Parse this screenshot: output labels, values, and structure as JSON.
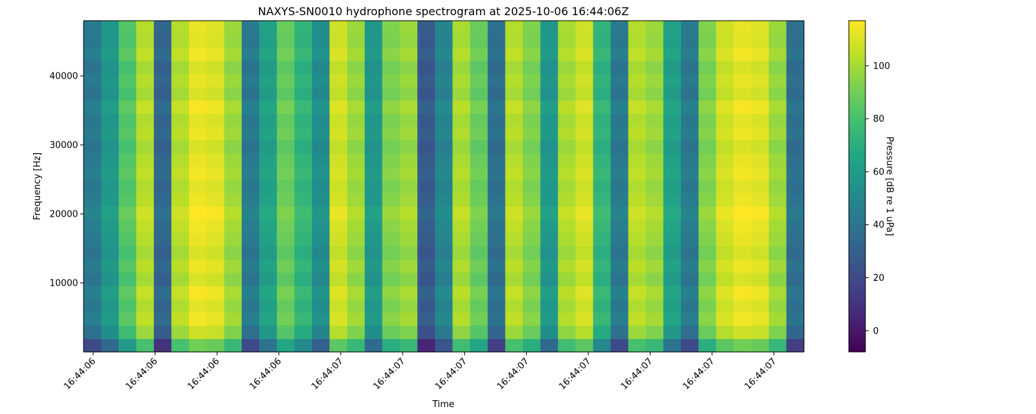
{
  "chart_data": {
    "type": "heatmap",
    "title": "NAXYS-SN0010 hydrophone spectrogram at 2025-10-06 16:44:06Z",
    "xlabel": "Time",
    "ylabel": "Frequency [Hz]",
    "colorbar_label": "Pressure [dB re 1 uPa]",
    "colormap": "viridis",
    "ylim": [
      0,
      48000
    ],
    "y_ticks": [
      10000,
      20000,
      30000,
      40000
    ],
    "x_tick_labels": [
      "16:44:06",
      "16:44:06",
      "16:44:06",
      "16:44:06",
      "16:44:07",
      "16:44:07",
      "16:44:07",
      "16:44:07",
      "16:44:07",
      "16:44:07",
      "16:44:07",
      "16:44:07"
    ],
    "colorbar_range": [
      -8,
      117
    ],
    "colorbar_ticks": [
      0,
      20,
      40,
      60,
      80,
      100
    ],
    "time_columns_db": [
      40,
      55,
      80,
      100,
      30,
      100,
      110,
      108,
      95,
      40,
      60,
      85,
      70,
      50,
      105,
      95,
      55,
      90,
      95,
      25,
      45,
      98,
      85,
      35,
      100,
      90,
      55,
      98,
      105,
      70,
      40,
      100,
      95,
      60,
      40,
      90,
      105,
      110,
      108,
      95,
      35
    ],
    "frequency_profile_offset_db": [
      -20,
      -2,
      5,
      2,
      6,
      0,
      4,
      0,
      3,
      5,
      8,
      4,
      2,
      5,
      3,
      0,
      4,
      2,
      6,
      0,
      3,
      0,
      5,
      2,
      3
    ]
  }
}
